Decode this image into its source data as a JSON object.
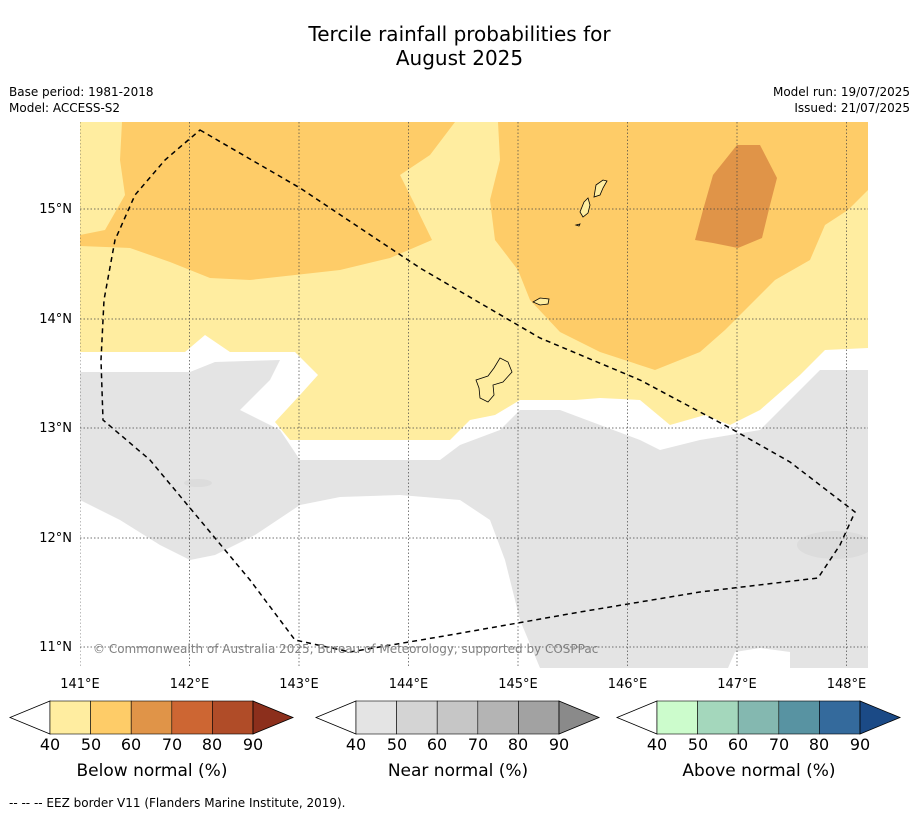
{
  "title_line1": "Tercile rainfall probabilities for",
  "title_line2": "August 2025",
  "meta_left": [
    "Base period: 1981-2018",
    "Model: ACCESS-S2"
  ],
  "meta_right": [
    "Model run: 19/07/2025",
    "Issued: 21/07/2025"
  ],
  "map": {
    "lon_labels": [
      "141°E",
      "142°E",
      "143°E",
      "144°E",
      "145°E",
      "146°E",
      "147°E",
      "148°E"
    ],
    "lat_labels": [
      "15°N",
      "14°N",
      "13°N",
      "12°N",
      "11°N"
    ],
    "copyright": "© Commonwealth of Australia 2025, Bureau of Meteorology, supported by COSPPac",
    "category_colors": {
      "below_40": "#FFEDA0",
      "below_50": "#FECC68",
      "below_60": "#E09448",
      "near": "#E4E4E4",
      "none": "#FFFFFF"
    }
  },
  "colorbars": [
    {
      "label": "Below normal (%)",
      "ticks": [
        "40",
        "50",
        "60",
        "70",
        "80",
        "90"
      ],
      "colors": [
        "#FFEDA0",
        "#FECC68",
        "#E09448",
        "#CD6633",
        "#B04C28",
        "#8C2F1C"
      ]
    },
    {
      "label": "Near normal (%)",
      "ticks": [
        "40",
        "50",
        "60",
        "70",
        "80",
        "90"
      ],
      "colors": [
        "#E4E4E4",
        "#D4D4D4",
        "#C6C6C6",
        "#B4B4B4",
        "#A2A2A2",
        "#8A8A8A"
      ]
    },
    {
      "label": "Above normal (%)",
      "ticks": [
        "40",
        "50",
        "60",
        "70",
        "80",
        "90"
      ],
      "colors": [
        "#CCFCCC",
        "#A4D7BC",
        "#84B8B0",
        "#5893A2",
        "#346A9C",
        "#1B4A86"
      ]
    }
  ],
  "footer": "--  --  -- EEZ border V11 (Flanders Marine Institute, 2019)."
}
